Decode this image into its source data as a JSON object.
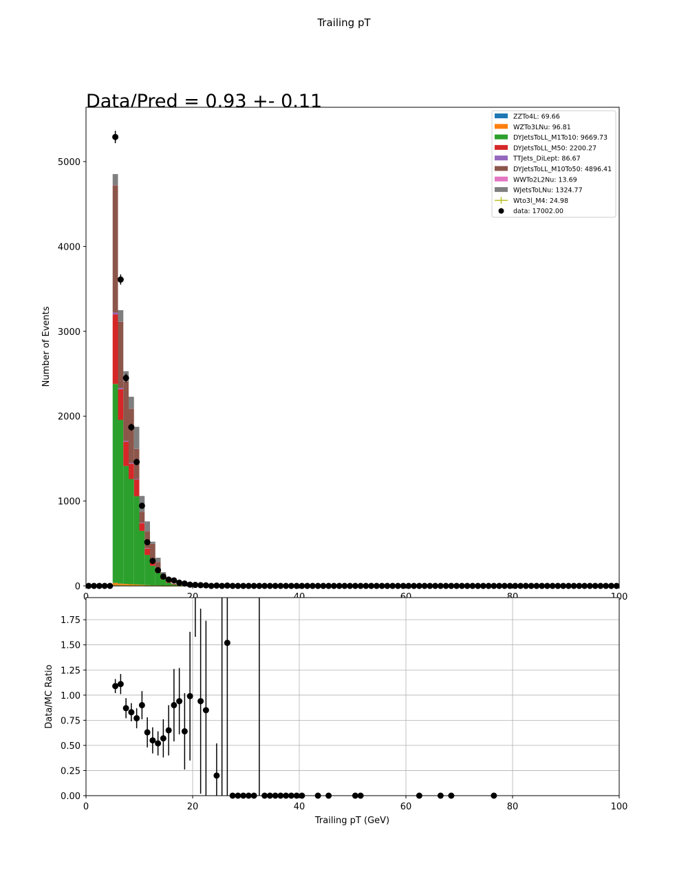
{
  "figure_title": "Trailing pT",
  "ratio_text": "Data/Pred = 0.93 +- 0.11",
  "colors": {
    "ZZTo4L": "#1f77b4",
    "WZTo3LNu": "#ff7f0e",
    "DYJetsToLL_M1To10": "#2ca02c",
    "DYJetsToLL_M50": "#d62728",
    "TTJets_DiLept": "#9467bd",
    "DYJetsToLL_M10To50": "#8c564b",
    "WWTo2L2Nu": "#e377c2",
    "WJetsToLNu": "#7f7f7f",
    "Wto3l_M4": "#bcbd22",
    "data": "#000000",
    "grid": "#b0b0b0"
  },
  "chart_data": [
    {
      "type": "bar",
      "stacked": true,
      "title": "Trailing pT",
      "ylabel": "Number of Events",
      "xlabel": "",
      "xlim": [
        0,
        100
      ],
      "ylim": [
        0,
        5640
      ],
      "xticks": [
        0,
        20,
        40,
        60,
        80,
        100
      ],
      "xtick_labels": [
        "0",
        "20",
        "40",
        "60",
        "80",
        "100"
      ],
      "yticks": [
        0,
        1000,
        2000,
        3000,
        4000,
        5000
      ],
      "ytick_labels": [
        "0",
        "1000",
        "2000",
        "3000",
        "4000",
        "5000"
      ],
      "grid": false,
      "bin_edges": [
        5,
        6,
        7,
        8,
        9,
        10,
        11,
        12,
        13,
        14,
        15,
        16,
        17,
        18
      ],
      "series": [
        {
          "name": "ZZTo4L",
          "legend": "ZZTo4L: 69.66",
          "color_key": "ZZTo4L",
          "values": [
            12,
            10,
            9,
            8,
            7,
            6,
            5,
            4,
            3,
            2,
            1,
            1,
            1
          ]
        },
        {
          "name": "WZTo3LNu",
          "legend": "WZTo3LNu: 96.81",
          "color_key": "WZTo3LNu",
          "values": [
            23,
            17,
            14,
            12,
            10,
            8,
            5,
            3,
            2,
            1,
            1,
            0,
            0
          ]
        },
        {
          "name": "DYJetsToLL_M1To10",
          "legend": "DYJetsToLL_M1To10: 9669.73",
          "color_key": "DYJetsToLL_M1To10",
          "values": [
            2345,
            1930,
            1390,
            1240,
            1040,
            635,
            355,
            230,
            150,
            75,
            35,
            15,
            8
          ]
        },
        {
          "name": "DYJetsToLL_M50",
          "legend": "DYJetsToLL_M50: 2200.27",
          "color_key": "DYJetsToLL_M50",
          "values": [
            820,
            360,
            285,
            180,
            195,
            90,
            75,
            55,
            35,
            18,
            10,
            5,
            2
          ]
        },
        {
          "name": "TTJets_DiLept",
          "legend": "TTJets_DiLept: 86.67",
          "color_key": "TTJets_DiLept",
          "values": [
            20,
            15,
            10,
            8,
            7,
            5,
            4,
            3,
            2,
            1,
            1,
            0,
            0
          ]
        },
        {
          "name": "DYJetsToLL_M10To50",
          "legend": "DYJetsToLL_M10To50: 4896.41",
          "color_key": "DYJetsToLL_M10To50",
          "values": [
            1500,
            780,
            700,
            640,
            355,
            130,
            200,
            200,
            90,
            45,
            15,
            5,
            2
          ]
        },
        {
          "name": "WWTo2L2Nu",
          "legend": "WWTo2L2Nu: 13.69",
          "color_key": "WWTo2L2Nu",
          "values": [
            3,
            2,
            2,
            1,
            1,
            1,
            1,
            1,
            0,
            0,
            0,
            0,
            0
          ]
        },
        {
          "name": "WJetsToLNu",
          "legend": "WJetsToLNu: 1324.77",
          "color_key": "WJetsToLNu",
          "values": [
            130,
            135,
            120,
            140,
            260,
            185,
            115,
            25,
            50,
            20,
            5,
            3,
            2
          ]
        },
        {
          "name": "Wto3l_M4",
          "legend": "Wto3l_M4: 24.98",
          "color_key": "Wto3l_M4",
          "values": [
            5,
            4,
            3,
            3,
            2,
            2,
            1,
            1,
            1,
            0,
            0,
            0,
            0
          ]
        }
      ],
      "data_points": {
        "legend": "data: 17002.00",
        "x": [
          5.5,
          6.5,
          7.5,
          8.5,
          9.5,
          10.5,
          11.5,
          12.5,
          13.5,
          14.5,
          15.5,
          16.5,
          17.5,
          18.5,
          19.5,
          20.5,
          21.5,
          22.5,
          24.5,
          26.5
        ],
        "y": [
          5290,
          3610,
          2450,
          1870,
          1460,
          945,
          515,
          295,
          185,
          110,
          75,
          65,
          38,
          28,
          15,
          12,
          9,
          7,
          4,
          4
        ],
        "err": [
          73,
          60,
          50,
          43,
          38,
          31,
          23,
          17,
          14,
          10,
          9,
          8,
          6,
          5,
          4,
          3,
          3,
          3,
          2,
          2
        ]
      },
      "legend_position": "upper right"
    },
    {
      "type": "scatter",
      "ylabel": "Data/MC Ratio",
      "xlabel": "Trailing pT (GeV)",
      "xlim": [
        0,
        100
      ],
      "ylim": [
        0,
        1.97
      ],
      "xticks": [
        0,
        20,
        40,
        60,
        80,
        100
      ],
      "xtick_labels": [
        "0",
        "20",
        "40",
        "60",
        "80",
        "100"
      ],
      "yticks": [
        0,
        0.25,
        0.5,
        0.75,
        1.0,
        1.25,
        1.5,
        1.75
      ],
      "ytick_labels": [
        "0.00",
        "0.25",
        "0.50",
        "0.75",
        "1.00",
        "1.25",
        "1.50",
        "1.75"
      ],
      "grid": true,
      "points": {
        "x": [
          5.5,
          6.5,
          7.5,
          8.5,
          9.5,
          10.5,
          11.5,
          12.5,
          13.5,
          14.5,
          15.5,
          16.5,
          17.5,
          18.5,
          19.5,
          21.5,
          22.5,
          24.5,
          26.5
        ],
        "y": [
          1.09,
          1.11,
          0.87,
          0.83,
          0.77,
          0.9,
          0.63,
          0.55,
          0.52,
          0.57,
          0.65,
          0.9,
          0.94,
          0.64,
          0.99,
          0.94,
          0.85,
          0.2,
          1.52
        ],
        "err": [
          0.07,
          0.1,
          0.1,
          0.09,
          0.1,
          0.14,
          0.15,
          0.13,
          0.12,
          0.19,
          0.25,
          0.36,
          0.33,
          0.38,
          0.64,
          0.92,
          0.89,
          0.32,
          2.0
        ]
      },
      "zero_points_x": [
        27.5,
        28.5,
        29.5,
        30.5,
        31.5,
        33.5,
        34.5,
        35.5,
        36.5,
        37.5,
        38.5,
        39.5,
        40.5,
        43.5,
        45.5,
        50.5,
        51.5,
        62.5,
        66.5,
        68.5,
        76.5
      ],
      "tall_error_bars": [
        {
          "x": 20.5,
          "low": 1.58,
          "high": 2.0
        },
        {
          "x": 25.5,
          "low": 0.0,
          "high": 2.0
        },
        {
          "x": 32.5,
          "low": 0.0,
          "high": 2.0
        }
      ]
    }
  ]
}
